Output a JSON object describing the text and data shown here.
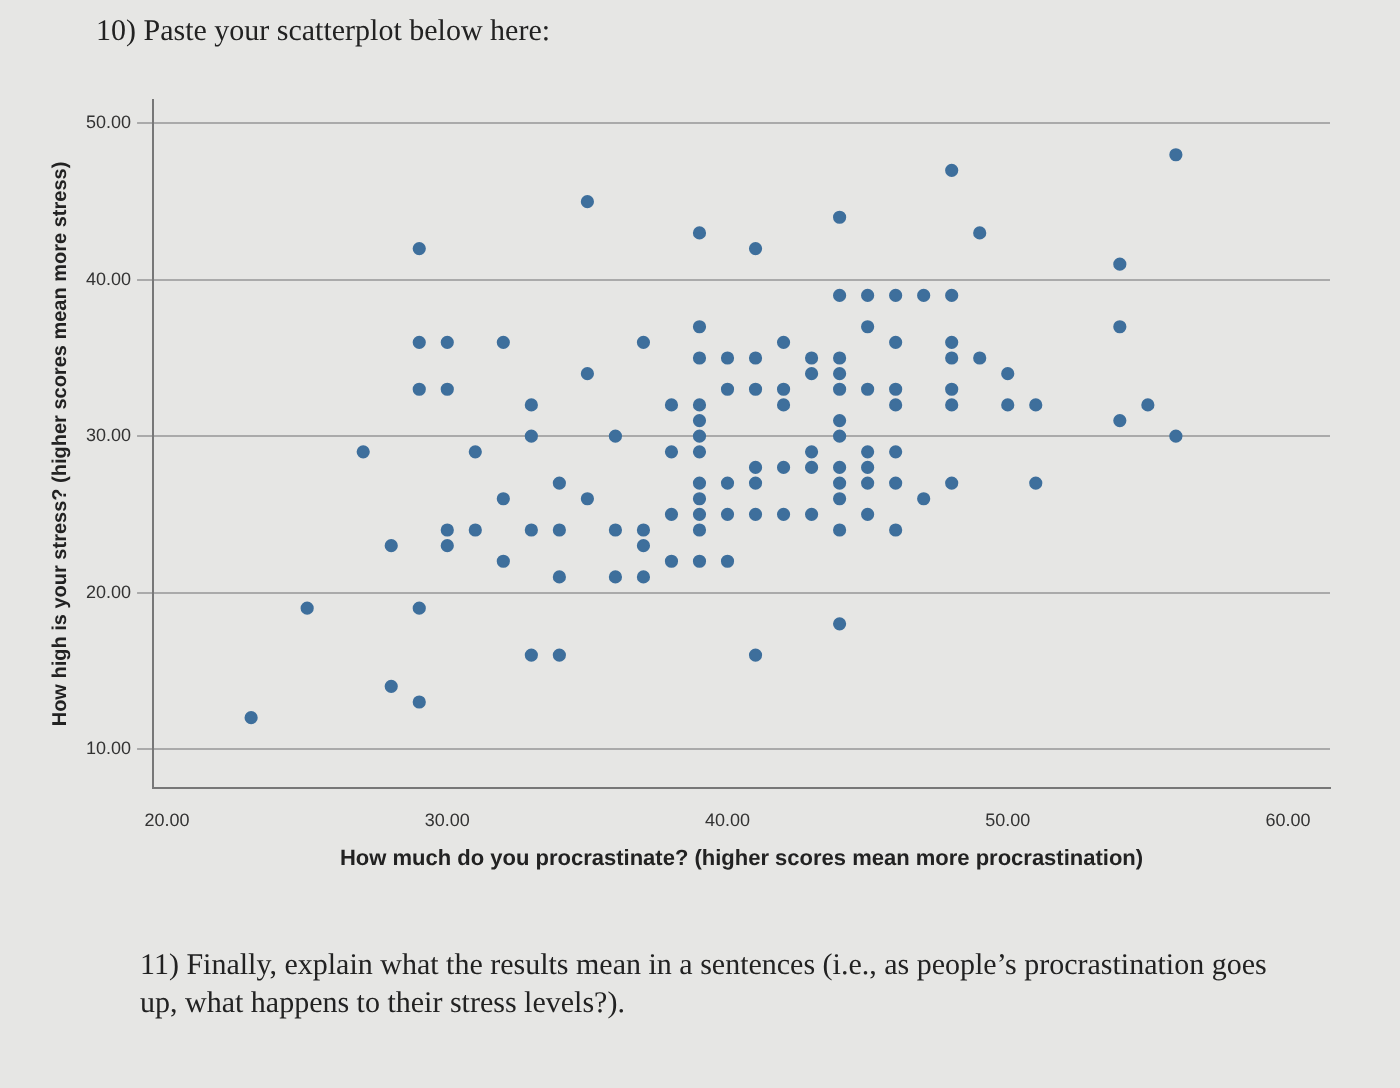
{
  "chart_data": {
    "type": "scatter",
    "title": "10) Paste your scatterplot below here:",
    "xlabel": "How much do you procrastinate? (higher scores mean more procrastination)",
    "ylabel": "How high is your stress? (higher scores mean more stress)",
    "annotations": [
      "11) Finally, explain what the results mean in a sentences (i.e., as people’s procrastination goes up, what happens to their stress levels?)."
    ],
    "xlim": [
      19.5,
      61.5
    ],
    "ylim": [
      7.5,
      51.5
    ],
    "xticks": [
      {
        "value": 20,
        "label": "20.00"
      },
      {
        "value": 30,
        "label": "30.00"
      },
      {
        "value": 40,
        "label": "40.00"
      },
      {
        "value": 50,
        "label": "50.00"
      },
      {
        "value": 60,
        "label": "60.00"
      }
    ],
    "yticks": [
      {
        "value": 10,
        "label": "10.00"
      },
      {
        "value": 20,
        "label": "20.00"
      },
      {
        "value": 30,
        "label": "30.00"
      },
      {
        "value": 40,
        "label": "40.00"
      },
      {
        "value": 50,
        "label": "50.00"
      }
    ],
    "grid": "y",
    "marker": "circle",
    "legend": false,
    "series": [
      {
        "color": "#3e6f9c",
        "x": [
          29,
          29,
          30,
          32,
          29,
          30,
          33,
          33,
          27,
          31,
          34,
          32,
          30,
          31,
          33,
          34,
          28,
          30,
          32,
          34,
          25,
          29,
          33,
          34,
          28,
          29,
          23,
          56,
          48,
          35,
          44,
          39,
          49,
          41,
          54,
          44,
          45,
          46,
          47,
          48,
          39,
          45,
          54,
          37,
          42,
          46,
          48,
          39,
          40,
          41,
          43,
          44,
          48,
          49,
          35,
          43,
          44,
          50,
          40,
          41,
          42,
          44,
          45,
          46,
          48,
          38,
          39,
          42,
          46,
          48,
          50,
          51,
          55,
          39,
          44,
          54,
          36,
          39,
          44,
          56,
          38,
          39,
          43,
          45,
          46,
          41,
          42,
          43,
          44,
          45,
          39,
          40,
          41,
          44,
          45,
          46,
          48,
          51,
          35,
          39,
          44,
          47,
          38,
          39,
          40,
          41,
          42,
          43,
          45,
          36,
          37,
          39,
          44,
          46,
          37,
          38,
          39,
          40,
          36,
          37,
          44,
          41
        ],
        "values": [
          42,
          36,
          36,
          36,
          33,
          33,
          32,
          30,
          29,
          29,
          27,
          26,
          24,
          24,
          24,
          24,
          23,
          23,
          22,
          21,
          19,
          19,
          16,
          16,
          14,
          13,
          12,
          48,
          47,
          45,
          44,
          43,
          43,
          42,
          41,
          39,
          39,
          39,
          39,
          39,
          37,
          37,
          37,
          36,
          36,
          36,
          36,
          35,
          35,
          35,
          35,
          35,
          35,
          35,
          34,
          34,
          34,
          34,
          33,
          33,
          33,
          33,
          33,
          33,
          33,
          32,
          32,
          32,
          32,
          32,
          32,
          32,
          32,
          31,
          31,
          31,
          30,
          30,
          30,
          30,
          29,
          29,
          29,
          29,
          29,
          28,
          28,
          28,
          28,
          28,
          27,
          27,
          27,
          27,
          27,
          27,
          27,
          27,
          26,
          26,
          26,
          26,
          25,
          25,
          25,
          25,
          25,
          25,
          25,
          24,
          24,
          24,
          24,
          24,
          23,
          22,
          22,
          22,
          21,
          21,
          18,
          16
        ]
      }
    ]
  }
}
